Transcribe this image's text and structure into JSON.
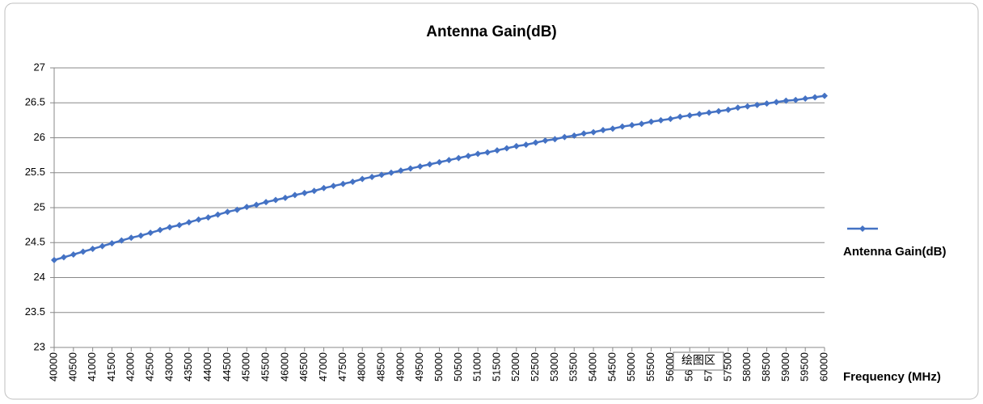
{
  "chart_data": {
    "type": "line",
    "title": "Antenna Gain(dB)",
    "x_label": "Frequency (MHz)",
    "tooltip": "绘图区",
    "x": [
      40000,
      40250,
      40500,
      40750,
      41000,
      41250,
      41500,
      41750,
      42000,
      42250,
      42500,
      42750,
      43000,
      43250,
      43500,
      43750,
      44000,
      44250,
      44500,
      44750,
      45000,
      45250,
      45500,
      45750,
      46000,
      46250,
      46500,
      46750,
      47000,
      47250,
      47500,
      47750,
      48000,
      48250,
      48500,
      48750,
      49000,
      49250,
      49500,
      49750,
      50000,
      50250,
      50500,
      50750,
      51000,
      51250,
      51500,
      51750,
      52000,
      52250,
      52500,
      52750,
      53000,
      53250,
      53500,
      53750,
      54000,
      54250,
      54500,
      54750,
      55000,
      55250,
      55500,
      55750,
      56000,
      56250,
      56500,
      56750,
      57000,
      57250,
      57500,
      57750,
      58000,
      58250,
      58500,
      58750,
      59000,
      59250,
      59500,
      59750,
      60000
    ],
    "series": [
      {
        "name": "Antenna Gain(dB)",
        "color": "#4472c4",
        "values": [
          24.25,
          24.29,
          24.33,
          24.37,
          24.41,
          24.45,
          24.49,
          24.53,
          24.57,
          24.6,
          24.64,
          24.68,
          24.72,
          24.75,
          24.79,
          24.83,
          24.86,
          24.9,
          24.94,
          24.97,
          25.01,
          25.04,
          25.08,
          25.11,
          25.14,
          25.18,
          25.21,
          25.24,
          25.28,
          25.31,
          25.34,
          25.37,
          25.41,
          25.44,
          25.47,
          25.5,
          25.53,
          25.56,
          25.59,
          25.62,
          25.65,
          25.68,
          25.71,
          25.74,
          25.77,
          25.79,
          25.82,
          25.85,
          25.88,
          25.9,
          25.93,
          25.96,
          25.98,
          26.01,
          26.03,
          26.06,
          26.08,
          26.11,
          26.13,
          26.16,
          26.18,
          26.2,
          26.23,
          26.25,
          26.27,
          26.3,
          26.32,
          26.34,
          26.36,
          26.38,
          26.4,
          26.43,
          26.45,
          26.47,
          26.49,
          26.51,
          26.53,
          26.54,
          26.56,
          26.58,
          26.6
        ]
      }
    ],
    "xlim": [
      40000,
      60000
    ],
    "xticks": [
      40000,
      40500,
      41000,
      41500,
      42000,
      42500,
      43000,
      43500,
      44000,
      44500,
      45000,
      45500,
      46000,
      46500,
      47000,
      47500,
      48000,
      48500,
      49000,
      49500,
      50000,
      50500,
      51000,
      51500,
      52000,
      52500,
      53000,
      53500,
      54000,
      54500,
      55000,
      55500,
      56000,
      56500,
      57000,
      57500,
      58000,
      58500,
      59000,
      59500,
      60000
    ],
    "ylim": [
      23,
      27
    ],
    "yticks": [
      23,
      23.5,
      24,
      24.5,
      25,
      25.5,
      26,
      26.5,
      27
    ],
    "grid": true,
    "legend": "right"
  }
}
